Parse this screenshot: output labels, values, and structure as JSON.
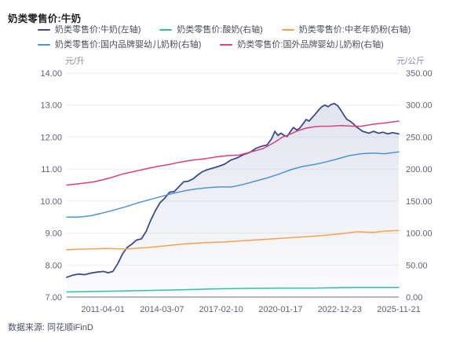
{
  "header": {
    "title": "奶类零售价:牛奶"
  },
  "source": {
    "text": "数据来源: 同花顺iFinD"
  },
  "colors": {
    "grid": "#eceef4",
    "axis_line": "#b3b6c0",
    "tick_text": "#5f6371",
    "area_fill_top": "rgba(76,92,155,0.16)",
    "area_fill_bottom": "rgba(76,92,155,0.02)"
  },
  "chart_data": {
    "type": "line",
    "title": "奶类零售价:牛奶",
    "legend_position": "top",
    "grid": "horizontal-only",
    "left_axis": {
      "unit": "元/升",
      "min": 7,
      "max": 14,
      "ticks": [
        "14.00",
        "13.00",
        "12.00",
        "11.00",
        "10.00",
        "9.00",
        "8.00",
        "7.00"
      ]
    },
    "right_axis": {
      "unit": "元/公斤",
      "min": 0,
      "max": 350,
      "ticks": [
        "350.00",
        "300.00",
        "250.00",
        "200.00",
        "150.00",
        "100.00",
        "50.00",
        "0.00"
      ]
    },
    "x_ticks": {
      "labels": [
        "2011-04-01",
        "2014-03-07",
        "2017-02-10",
        "2020-01-17",
        "2022-12-23",
        "2025-11-21"
      ],
      "fractions": [
        0.109,
        0.287,
        0.465,
        0.644,
        0.822,
        1.0
      ]
    },
    "series": [
      {
        "name": "奶类零售价:牛奶(左轴)",
        "axis": "left",
        "color": "#3c4b8d",
        "area": true,
        "points": [
          [
            0,
            7.62
          ],
          [
            0.017,
            7.68
          ],
          [
            0.035,
            7.72
          ],
          [
            0.054,
            7.7
          ],
          [
            0.073,
            7.75
          ],
          [
            0.092,
            7.78
          ],
          [
            0.111,
            7.8
          ],
          [
            0.125,
            7.76
          ],
          [
            0.139,
            7.8
          ],
          [
            0.154,
            8.05
          ],
          [
            0.168,
            8.35
          ],
          [
            0.182,
            8.55
          ],
          [
            0.196,
            8.65
          ],
          [
            0.21,
            8.78
          ],
          [
            0.225,
            8.82
          ],
          [
            0.239,
            9.05
          ],
          [
            0.253,
            9.4
          ],
          [
            0.267,
            9.7
          ],
          [
            0.281,
            9.95
          ],
          [
            0.296,
            10.1
          ],
          [
            0.31,
            10.28
          ],
          [
            0.324,
            10.3
          ],
          [
            0.338,
            10.45
          ],
          [
            0.352,
            10.6
          ],
          [
            0.366,
            10.62
          ],
          [
            0.381,
            10.7
          ],
          [
            0.395,
            10.82
          ],
          [
            0.409,
            10.92
          ],
          [
            0.423,
            10.98
          ],
          [
            0.437,
            11.02
          ],
          [
            0.456,
            11.08
          ],
          [
            0.475,
            11.15
          ],
          [
            0.494,
            11.28
          ],
          [
            0.513,
            11.35
          ],
          [
            0.532,
            11.45
          ],
          [
            0.551,
            11.52
          ],
          [
            0.57,
            11.65
          ],
          [
            0.589,
            11.72
          ],
          [
            0.603,
            11.75
          ],
          [
            0.617,
            11.95
          ],
          [
            0.627,
            12.18
          ],
          [
            0.636,
            12.05
          ],
          [
            0.645,
            12.12
          ],
          [
            0.655,
            12.05
          ],
          [
            0.664,
            12.02
          ],
          [
            0.674,
            12.18
          ],
          [
            0.683,
            12.3
          ],
          [
            0.693,
            12.22
          ],
          [
            0.702,
            12.28
          ],
          [
            0.712,
            12.42
          ],
          [
            0.721,
            12.55
          ],
          [
            0.73,
            12.5
          ],
          [
            0.74,
            12.62
          ],
          [
            0.749,
            12.72
          ],
          [
            0.759,
            12.85
          ],
          [
            0.768,
            12.95
          ],
          [
            0.778,
            13.0
          ],
          [
            0.787,
            12.95
          ],
          [
            0.797,
            13.02
          ],
          [
            0.806,
            13.05
          ],
          [
            0.816,
            12.98
          ],
          [
            0.825,
            12.85
          ],
          [
            0.835,
            12.68
          ],
          [
            0.844,
            12.55
          ],
          [
            0.853,
            12.5
          ],
          [
            0.863,
            12.42
          ],
          [
            0.872,
            12.32
          ],
          [
            0.882,
            12.25
          ],
          [
            0.891,
            12.18
          ],
          [
            0.901,
            12.15
          ],
          [
            0.91,
            12.12
          ],
          [
            0.924,
            12.18
          ],
          [
            0.939,
            12.12
          ],
          [
            0.953,
            12.15
          ],
          [
            0.967,
            12.1
          ],
          [
            0.981,
            12.14
          ],
          [
            1.0,
            12.1
          ]
        ]
      },
      {
        "name": "奶类零售价:酸奶(右轴)",
        "axis": "right",
        "color": "#2cc2a5",
        "area": false,
        "points": [
          [
            0,
            8
          ],
          [
            0.106,
            9
          ],
          [
            0.213,
            10
          ],
          [
            0.319,
            11
          ],
          [
            0.426,
            12.5
          ],
          [
            0.532,
            13.5
          ],
          [
            0.638,
            14
          ],
          [
            0.745,
            14
          ],
          [
            0.851,
            15
          ],
          [
            1.0,
            15
          ]
        ]
      },
      {
        "name": "奶类零售价:中老年奶粉(右轴)",
        "axis": "right",
        "color": "#f6a24d",
        "area": false,
        "points": [
          [
            0,
            74
          ],
          [
            0.059,
            75
          ],
          [
            0.118,
            76
          ],
          [
            0.177,
            75
          ],
          [
            0.236,
            77
          ],
          [
            0.296,
            80
          ],
          [
            0.355,
            83
          ],
          [
            0.414,
            85
          ],
          [
            0.473,
            86
          ],
          [
            0.532,
            88
          ],
          [
            0.591,
            90
          ],
          [
            0.65,
            92
          ],
          [
            0.709,
            94
          ],
          [
            0.768,
            96
          ],
          [
            0.827,
            99
          ],
          [
            0.875,
            102
          ],
          [
            0.922,
            101
          ],
          [
            0.957,
            103
          ],
          [
            1.0,
            104
          ]
        ]
      },
      {
        "name": "奶类零售价:国内品牌婴幼儿奶粉(右轴)",
        "axis": "right",
        "color": "#4f93d8",
        "area": false,
        "points": [
          [
            0,
            125
          ],
          [
            0.035,
            125
          ],
          [
            0.071,
            127
          ],
          [
            0.106,
            131
          ],
          [
            0.142,
            136
          ],
          [
            0.177,
            141
          ],
          [
            0.213,
            147
          ],
          [
            0.248,
            152
          ],
          [
            0.284,
            157
          ],
          [
            0.319,
            162
          ],
          [
            0.355,
            166
          ],
          [
            0.39,
            169
          ],
          [
            0.426,
            171
          ],
          [
            0.461,
            172
          ],
          [
            0.497,
            172
          ],
          [
            0.532,
            176
          ],
          [
            0.567,
            181
          ],
          [
            0.603,
            186
          ],
          [
            0.638,
            192
          ],
          [
            0.674,
            199
          ],
          [
            0.709,
            204
          ],
          [
            0.745,
            207
          ],
          [
            0.78,
            211
          ],
          [
            0.816,
            216
          ],
          [
            0.851,
            221
          ],
          [
            0.887,
            224
          ],
          [
            0.922,
            225
          ],
          [
            0.957,
            224
          ],
          [
            1.0,
            227
          ]
        ]
      },
      {
        "name": "奶类零售价:国外品牌婴幼儿奶粉(右轴)",
        "axis": "right",
        "color": "#e23e7d",
        "area": false,
        "points": [
          [
            0,
            175
          ],
          [
            0.035,
            177
          ],
          [
            0.083,
            180
          ],
          [
            0.13,
            186
          ],
          [
            0.166,
            192
          ],
          [
            0.201,
            196
          ],
          [
            0.236,
            200
          ],
          [
            0.272,
            204
          ],
          [
            0.307,
            207
          ],
          [
            0.343,
            211
          ],
          [
            0.378,
            214
          ],
          [
            0.414,
            216
          ],
          [
            0.449,
            219
          ],
          [
            0.485,
            221
          ],
          [
            0.52,
            222
          ],
          [
            0.556,
            227
          ],
          [
            0.591,
            232
          ],
          [
            0.627,
            242
          ],
          [
            0.65,
            250
          ],
          [
            0.674,
            255
          ],
          [
            0.697,
            260
          ],
          [
            0.721,
            264
          ],
          [
            0.745,
            266
          ],
          [
            0.768,
            267
          ],
          [
            0.792,
            267
          ],
          [
            0.827,
            268
          ],
          [
            0.863,
            267
          ],
          [
            0.887,
            267
          ],
          [
            0.922,
            270
          ],
          [
            0.957,
            272
          ],
          [
            1.0,
            275
          ]
        ]
      }
    ]
  }
}
